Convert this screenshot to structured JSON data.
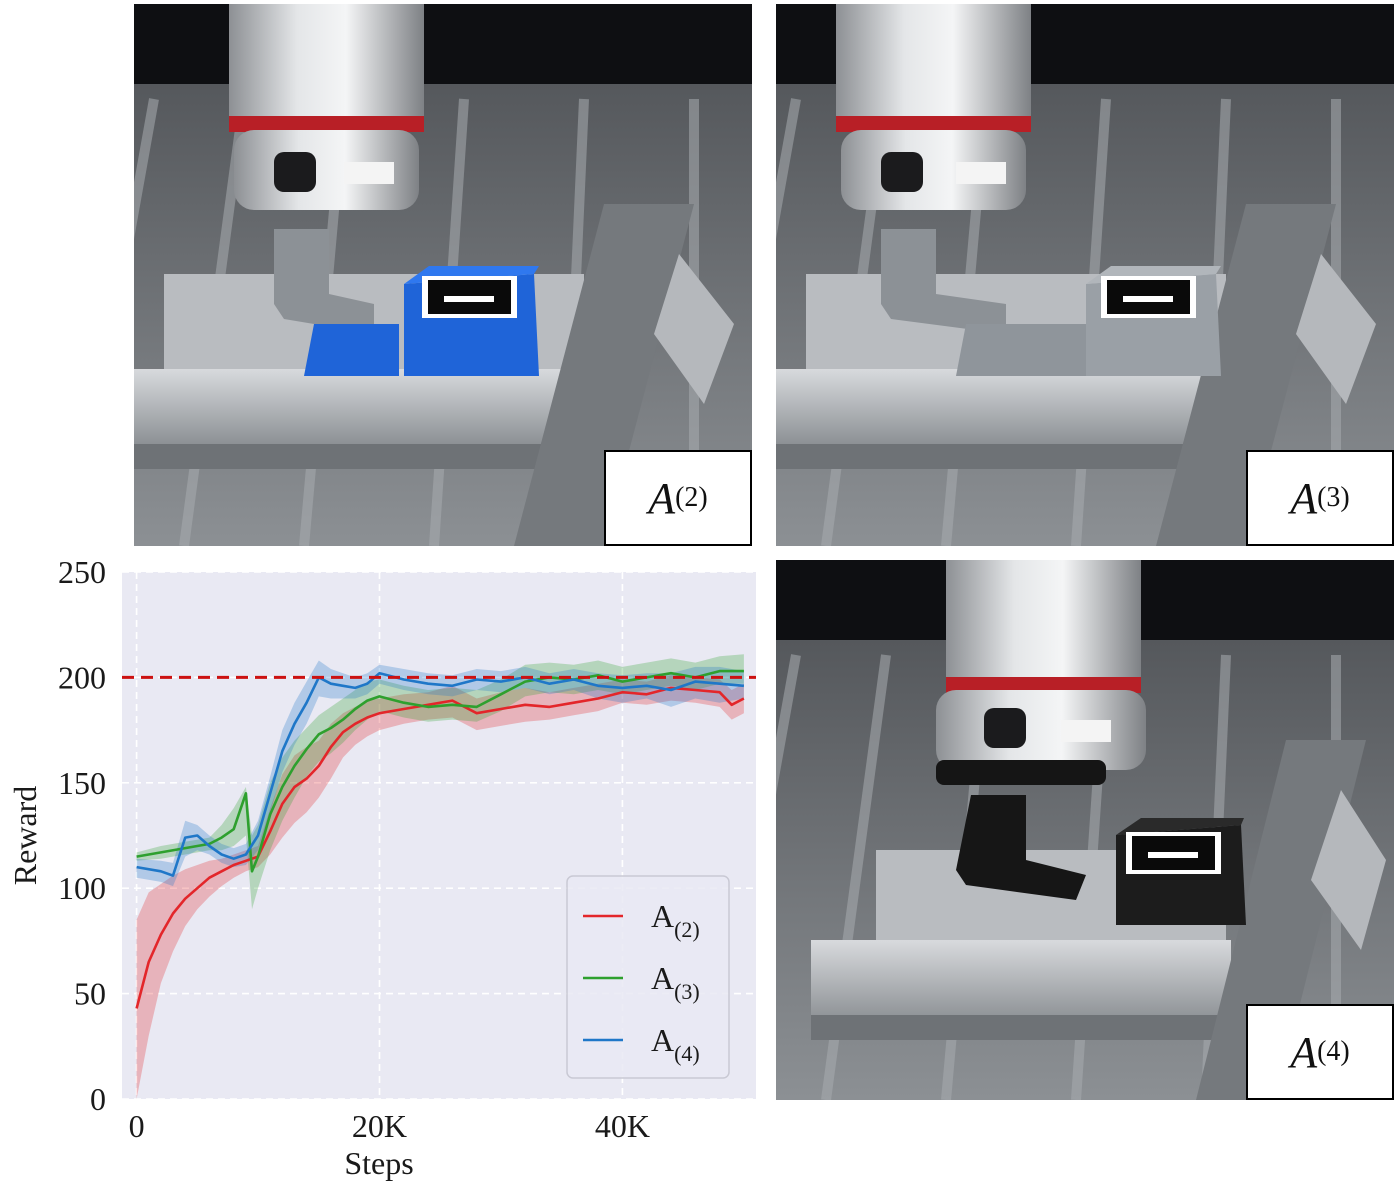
{
  "panels": [
    {
      "id": "A2",
      "label_main": "A",
      "label_sub": "(2)",
      "object_color": "#1f64d8"
    },
    {
      "id": "A3",
      "label_main": "A",
      "label_sub": "(3)",
      "object_color": "#8f959b"
    },
    {
      "id": "A4",
      "label_main": "A",
      "label_sub": "(4)",
      "object_color": "#161616"
    }
  ],
  "colors": {
    "plot_bg": "#e9e9f3",
    "grid": "#ffffff",
    "A2": "#e3262a",
    "A3": "#2ea02e",
    "A4": "#1f77c8",
    "target": "#cc1111"
  },
  "chart_data": {
    "type": "line",
    "xlabel": "Steps",
    "ylabel": "Reward",
    "xlim": [
      -1200,
      51000
    ],
    "ylim": [
      0,
      250
    ],
    "xticks": [
      0,
      20000,
      40000
    ],
    "xtick_labels": [
      "0",
      "20K",
      "40K"
    ],
    "yticks": [
      0,
      50,
      100,
      150,
      200,
      250
    ],
    "ytick_labels": [
      "0",
      "50",
      "100",
      "150",
      "200",
      "250"
    ],
    "grid": true,
    "legend_position": "lower-right",
    "reference_line": {
      "y": 200,
      "style": "dashed"
    },
    "series": [
      {
        "name": "A(2)",
        "name_main": "A",
        "name_sub": "(2)",
        "color_key": "A2",
        "x": [
          0,
          1000,
          2000,
          3000,
          4000,
          5000,
          6000,
          7000,
          8000,
          9000,
          10000,
          11000,
          12000,
          13000,
          14000,
          15000,
          16000,
          17000,
          18000,
          19000,
          20000,
          22000,
          24000,
          26000,
          28000,
          30000,
          32000,
          34000,
          36000,
          38000,
          40000,
          42000,
          44000,
          46000,
          48000,
          49000,
          50000
        ],
        "y": [
          43,
          65,
          78,
          88,
          95,
          100,
          105,
          108,
          111,
          113,
          115,
          127,
          140,
          148,
          152,
          158,
          167,
          174,
          178,
          181,
          183,
          185,
          187,
          189,
          183,
          185,
          187,
          186,
          188,
          190,
          193,
          192,
          195,
          194,
          193,
          187,
          190
        ],
        "lower": [
          0,
          30,
          55,
          70,
          82,
          90,
          96,
          101,
          105,
          108,
          110,
          116,
          124,
          131,
          136,
          143,
          152,
          162,
          168,
          172,
          175,
          178,
          180,
          181,
          175,
          177,
          179,
          180,
          182,
          184,
          188,
          187,
          189,
          188,
          186,
          180,
          183
        ],
        "upper": [
          85,
          98,
          102,
          106,
          109,
          111,
          113,
          114,
          116,
          118,
          120,
          138,
          154,
          163,
          167,
          170,
          178,
          183,
          186,
          189,
          190,
          192,
          193,
          196,
          190,
          193,
          195,
          193,
          195,
          197,
          199,
          198,
          201,
          200,
          199,
          194,
          197
        ]
      },
      {
        "name": "A(3)",
        "name_main": "A",
        "name_sub": "(3)",
        "color_key": "A3",
        "x": [
          0,
          2000,
          4000,
          6000,
          7000,
          8000,
          9000,
          9500,
          10000,
          11000,
          12000,
          13000,
          14000,
          15000,
          16000,
          17000,
          18000,
          19000,
          20000,
          22000,
          24000,
          26000,
          28000,
          30000,
          32000,
          34000,
          36000,
          38000,
          40000,
          42000,
          44000,
          46000,
          48000,
          50000
        ],
        "y": [
          115,
          117,
          119,
          121,
          124,
          128,
          145,
          108,
          115,
          135,
          148,
          158,
          166,
          173,
          176,
          180,
          185,
          189,
          191,
          188,
          186,
          187,
          186,
          192,
          198,
          200,
          199,
          201,
          198,
          200,
          202,
          200,
          203,
          203
        ],
        "lower": [
          113,
          114,
          116,
          118,
          118,
          120,
          125,
          90,
          100,
          118,
          132,
          143,
          153,
          160,
          164,
          169,
          175,
          180,
          184,
          181,
          179,
          180,
          179,
          184,
          191,
          193,
          192,
          194,
          192,
          194,
          196,
          194,
          197,
          197
        ],
        "upper": [
          117,
          120,
          122,
          124,
          130,
          138,
          148,
          125,
          130,
          150,
          162,
          170,
          176,
          182,
          186,
          190,
          194,
          198,
          199,
          196,
          194,
          195,
          194,
          199,
          206,
          207,
          206,
          208,
          205,
          207,
          209,
          207,
          210,
          211
        ]
      },
      {
        "name": "A(4)",
        "name_main": "A",
        "name_sub": "(4)",
        "color_key": "A4",
        "x": [
          0,
          2000,
          3000,
          4000,
          5000,
          6000,
          7000,
          8000,
          9000,
          10000,
          11000,
          12000,
          13000,
          14000,
          15000,
          16000,
          17000,
          18000,
          19000,
          20000,
          22000,
          24000,
          26000,
          28000,
          30000,
          32000,
          34000,
          36000,
          38000,
          40000,
          42000,
          44000,
          46000,
          48000,
          50000
        ],
        "y": [
          110,
          108,
          106,
          124,
          125,
          120,
          116,
          114,
          116,
          125,
          145,
          165,
          178,
          188,
          200,
          197,
          196,
          195,
          197,
          202,
          199,
          197,
          196,
          199,
          198,
          200,
          197,
          199,
          196,
          195,
          196,
          194,
          198,
          197,
          196
        ],
        "lower": [
          105,
          103,
          101,
          115,
          118,
          116,
          112,
          110,
          111,
          118,
          136,
          155,
          168,
          178,
          191,
          190,
          190,
          190,
          192,
          197,
          194,
          192,
          191,
          194,
          193,
          195,
          192,
          194,
          190,
          188,
          190,
          186,
          190,
          188,
          190
        ],
        "upper": [
          114,
          113,
          112,
          132,
          130,
          125,
          121,
          119,
          121,
          132,
          153,
          175,
          188,
          198,
          208,
          204,
          202,
          200,
          202,
          206,
          204,
          202,
          201,
          204,
          203,
          205,
          202,
          204,
          202,
          201,
          202,
          202,
          205,
          205,
          203
        ]
      }
    ]
  }
}
